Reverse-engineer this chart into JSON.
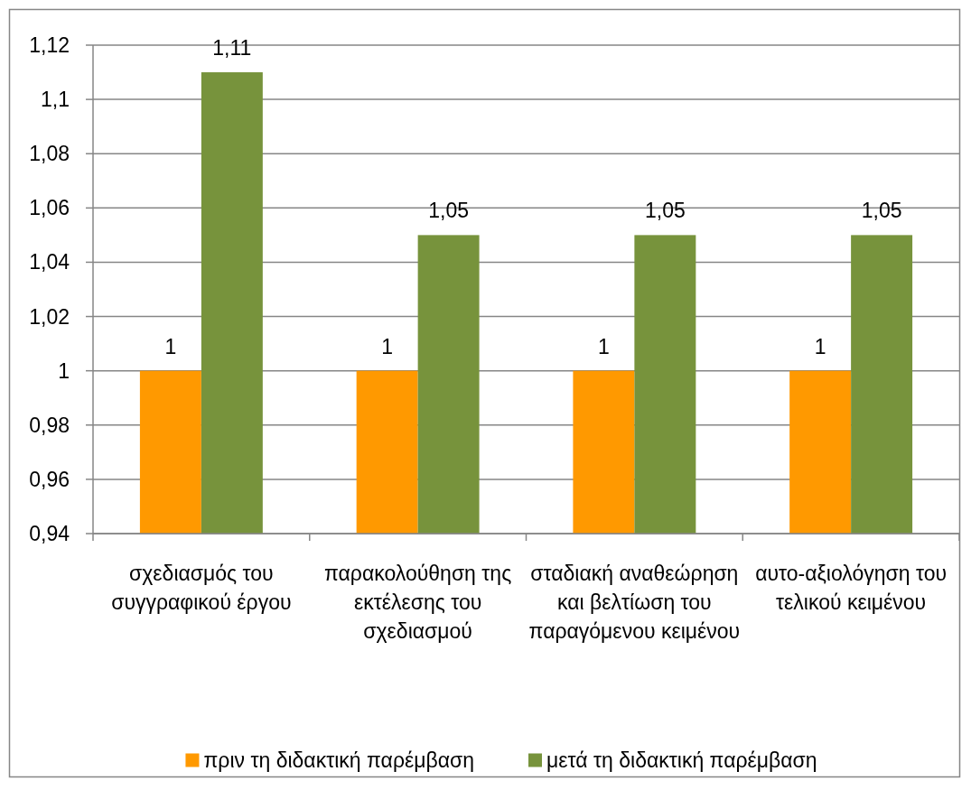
{
  "chart_data": {
    "type": "bar",
    "categories": [
      "σχεδιασμός του συγγραφικού έργου",
      "παρακολούθηση της εκτέλεσης του σχεδιασμού",
      "σταδιακή αναθεώρηση και βελτίωση του παραγόμενου κειμένου",
      "αυτο-αξιολόγηση του τελικού κειμένου"
    ],
    "series": [
      {
        "name": "πριν τη διδακτική παρέμβαση",
        "color": "#ff9900",
        "values": [
          1,
          1,
          1,
          1
        ],
        "value_labels": [
          "1",
          "1",
          "1",
          "1"
        ]
      },
      {
        "name": "μετά τη διδακτική παρέμβαση",
        "color": "#77933c",
        "values": [
          1.11,
          1.05,
          1.05,
          1.05
        ],
        "value_labels": [
          "1,11",
          "1,05",
          "1,05",
          "1,05"
        ]
      }
    ],
    "ylim": [
      0.94,
      1.12
    ],
    "yticks": [
      {
        "value": 0.94,
        "label": "0,94"
      },
      {
        "value": 0.96,
        "label": "0,96"
      },
      {
        "value": 0.98,
        "label": "0,98"
      },
      1,
      {
        "value": 1.02,
        "label": "1,02"
      },
      {
        "value": 1.04,
        "label": "1,04"
      },
      {
        "value": 1.06,
        "label": "1,06"
      },
      {
        "value": 1.08,
        "label": "1,08"
      },
      {
        "value": 1.1,
        "label": "1,1"
      },
      {
        "value": 1.12,
        "label": "1,12"
      }
    ],
    "grid": "y",
    "legend": "bottom"
  }
}
